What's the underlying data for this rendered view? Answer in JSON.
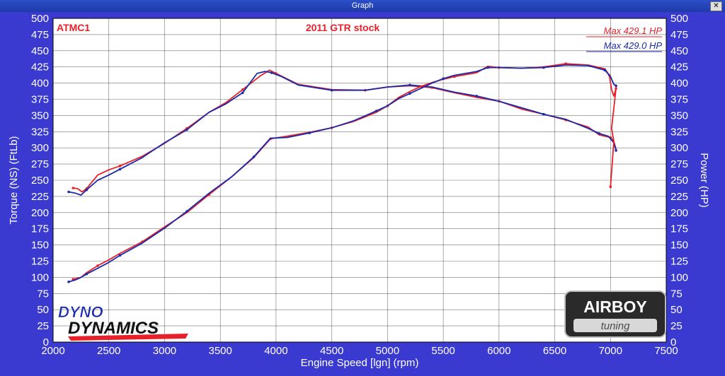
{
  "window": {
    "title": "Graph",
    "close_label": "✕"
  },
  "annotations": {
    "run_id": "ATMC1",
    "title": "2011 GTR stock"
  },
  "logos": {
    "left_line1": "DYNO",
    "left_line2": "DYNAMICS",
    "right_line1": "AIRBOY",
    "right_line2": "tuning"
  },
  "colors": {
    "background": "#3a3ad0",
    "plot": "#ffffff",
    "run_red": "#e8202a",
    "run_blue": "#1a2aa8"
  },
  "chart_data": {
    "type": "line",
    "xlabel": "Engine Speed [lgn] (rpm)",
    "ylabel_left": "Torque (NS) (FtLb)",
    "ylabel_right": "Power (HP)",
    "xlim": [
      2000,
      7500
    ],
    "ylim": [
      0,
      500
    ],
    "x_ticks": [
      2000,
      2500,
      3000,
      3500,
      4000,
      4500,
      5000,
      5500,
      6000,
      6500,
      7000,
      7500
    ],
    "y_ticks": [
      0,
      25,
      50,
      75,
      100,
      125,
      150,
      175,
      200,
      225,
      250,
      275,
      300,
      325,
      350,
      375,
      400,
      425,
      450,
      475,
      500
    ],
    "grid": true,
    "legend": [
      {
        "label": "Max 429.1 HP",
        "color": "#e8202a"
      },
      {
        "label": "Max 429.0 HP",
        "color": "#1a2aa8"
      }
    ],
    "series": [
      {
        "run": "red",
        "quantity": "torque",
        "color": "#e8202a",
        "points": [
          [
            2180,
            238
          ],
          [
            2220,
            237
          ],
          [
            2260,
            232
          ],
          [
            2300,
            237
          ],
          [
            2400,
            258
          ],
          [
            2500,
            266
          ],
          [
            2600,
            272
          ],
          [
            2800,
            287
          ],
          [
            3000,
            307
          ],
          [
            3200,
            330
          ],
          [
            3400,
            355
          ],
          [
            3550,
            370
          ],
          [
            3700,
            390
          ],
          [
            3850,
            410
          ],
          [
            3940,
            420
          ],
          [
            4000,
            415
          ],
          [
            4200,
            398
          ],
          [
            4500,
            390
          ],
          [
            4800,
            389
          ],
          [
            5000,
            394
          ],
          [
            5200,
            396
          ],
          [
            5400,
            393
          ],
          [
            5600,
            385
          ],
          [
            5800,
            378
          ],
          [
            6000,
            372
          ],
          [
            6200,
            360
          ],
          [
            6400,
            352
          ],
          [
            6600,
            343
          ],
          [
            6800,
            332
          ],
          [
            6900,
            320
          ],
          [
            7000,
            316
          ],
          [
            7030,
            310
          ],
          [
            7050,
            298
          ]
        ]
      },
      {
        "run": "blue",
        "quantity": "torque",
        "color": "#1a2aa8",
        "points": [
          [
            2140,
            232
          ],
          [
            2200,
            230
          ],
          [
            2250,
            227
          ],
          [
            2300,
            235
          ],
          [
            2400,
            250
          ],
          [
            2500,
            258
          ],
          [
            2600,
            267
          ],
          [
            2800,
            285
          ],
          [
            3000,
            308
          ],
          [
            3200,
            328
          ],
          [
            3400,
            355
          ],
          [
            3550,
            368
          ],
          [
            3700,
            385
          ],
          [
            3830,
            415
          ],
          [
            3900,
            418
          ],
          [
            3960,
            416
          ],
          [
            4050,
            410
          ],
          [
            4200,
            397
          ],
          [
            4500,
            389
          ],
          [
            4800,
            389
          ],
          [
            5000,
            394
          ],
          [
            5200,
            397
          ],
          [
            5400,
            394
          ],
          [
            5600,
            386
          ],
          [
            5800,
            380
          ],
          [
            6000,
            372
          ],
          [
            6200,
            362
          ],
          [
            6400,
            352
          ],
          [
            6600,
            344
          ],
          [
            6800,
            330
          ],
          [
            6900,
            322
          ],
          [
            6980,
            318
          ],
          [
            7030,
            308
          ],
          [
            7050,
            296
          ]
        ]
      },
      {
        "run": "red",
        "quantity": "power",
        "color": "#e8202a",
        "points": [
          [
            2180,
            97
          ],
          [
            2250,
            100
          ],
          [
            2300,
            107
          ],
          [
            2400,
            118
          ],
          [
            2500,
            127
          ],
          [
            2600,
            137
          ],
          [
            2800,
            155
          ],
          [
            3000,
            178
          ],
          [
            3200,
            200
          ],
          [
            3400,
            228
          ],
          [
            3600,
            255
          ],
          [
            3800,
            285
          ],
          [
            3950,
            314
          ],
          [
            4100,
            318
          ],
          [
            4300,
            324
          ],
          [
            4500,
            331
          ],
          [
            4700,
            341
          ],
          [
            4900,
            355
          ],
          [
            5000,
            365
          ],
          [
            5100,
            378
          ],
          [
            5200,
            387
          ],
          [
            5300,
            395
          ],
          [
            5400,
            401
          ],
          [
            5500,
            406
          ],
          [
            5600,
            410
          ],
          [
            5800,
            416
          ],
          [
            5900,
            426
          ],
          [
            6000,
            424
          ],
          [
            6200,
            423
          ],
          [
            6400,
            425
          ],
          [
            6600,
            430
          ],
          [
            6800,
            428
          ],
          [
            6950,
            422
          ],
          [
            6990,
            412
          ],
          [
            7010,
            390
          ],
          [
            7030,
            380
          ],
          [
            7050,
            392
          ],
          [
            7010,
            330
          ],
          [
            7030,
            310
          ],
          [
            7000,
            240
          ]
        ]
      },
      {
        "run": "blue",
        "quantity": "power",
        "color": "#1a2aa8",
        "points": [
          [
            2140,
            93
          ],
          [
            2200,
            96
          ],
          [
            2250,
            100
          ],
          [
            2300,
            105
          ],
          [
            2400,
            114
          ],
          [
            2500,
            123
          ],
          [
            2600,
            134
          ],
          [
            2800,
            153
          ],
          [
            3000,
            176
          ],
          [
            3200,
            202
          ],
          [
            3400,
            230
          ],
          [
            3600,
            255
          ],
          [
            3800,
            286
          ],
          [
            3950,
            315
          ],
          [
            4100,
            316
          ],
          [
            4300,
            323
          ],
          [
            4500,
            331
          ],
          [
            4700,
            342
          ],
          [
            4900,
            357
          ],
          [
            5000,
            365
          ],
          [
            5100,
            376
          ],
          [
            5200,
            384
          ],
          [
            5300,
            392
          ],
          [
            5400,
            400
          ],
          [
            5500,
            407
          ],
          [
            5600,
            412
          ],
          [
            5800,
            418
          ],
          [
            5900,
            424
          ],
          [
            6000,
            424
          ],
          [
            6200,
            423
          ],
          [
            6400,
            424
          ],
          [
            6600,
            428
          ],
          [
            6800,
            427
          ],
          [
            6950,
            420
          ],
          [
            7000,
            410
          ],
          [
            7030,
            398
          ],
          [
            7050,
            396
          ]
        ]
      }
    ]
  }
}
